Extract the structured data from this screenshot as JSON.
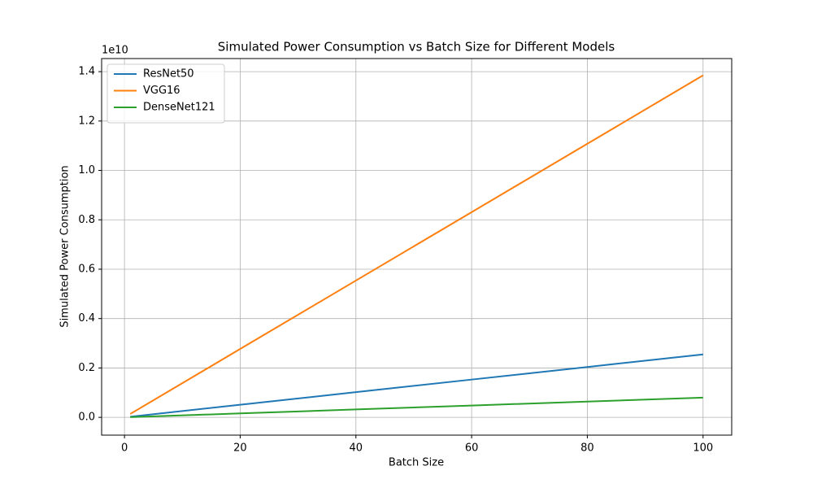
{
  "chart_data": {
    "type": "line",
    "title": "Simulated Power Consumption vs Batch Size for Different Models",
    "x_label": "Batch Size",
    "y_label": "Simulated Power Consumption",
    "y_offset_label": "1e10",
    "x": [
      1,
      20,
      40,
      60,
      80,
      100
    ],
    "series": [
      {
        "name": "ResNet50",
        "color": "#1f77b4",
        "values": [
          0.00255,
          0.051,
          0.102,
          0.153,
          0.204,
          0.255
        ]
      },
      {
        "name": "VGG16",
        "color": "#ff7f0e",
        "values": [
          0.01385,
          0.277,
          0.554,
          0.831,
          1.108,
          1.385
        ]
      },
      {
        "name": "DenseNet121",
        "color": "#2ca02c",
        "values": [
          0.0008,
          0.016,
          0.032,
          0.048,
          0.064,
          0.08
        ]
      }
    ],
    "xlim": [
      -3.95,
      104.95
    ],
    "xticks": [
      0,
      20,
      40,
      60,
      80,
      100
    ],
    "ylim": [
      -0.072,
      1.453
    ],
    "yticks": [
      {
        "value": 0,
        "label": "0.0"
      },
      0.2,
      0.4,
      0.6,
      0.8,
      {
        "value": 1,
        "label": "1.0"
      },
      1.2,
      1.4
    ],
    "grid": true,
    "legend": "upper left"
  }
}
